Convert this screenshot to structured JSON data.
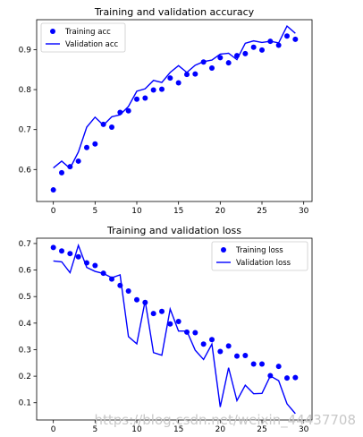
{
  "chart_data": [
    {
      "type": "line",
      "title": "Training and validation accuracy",
      "xlabel": "",
      "ylabel": "",
      "xlim": [
        -2,
        31
      ],
      "ylim": [
        0.52,
        0.975
      ],
      "xticks": [
        0,
        5,
        10,
        15,
        20,
        25,
        30
      ],
      "yticks": [
        0.6,
        0.7,
        0.8,
        0.9
      ],
      "legend_position": "top-left",
      "grid": false,
      "x": [
        0,
        1,
        2,
        3,
        4,
        5,
        6,
        7,
        8,
        9,
        10,
        11,
        12,
        13,
        14,
        15,
        16,
        17,
        18,
        19,
        20,
        21,
        22,
        23,
        24,
        25,
        26,
        27,
        28,
        29
      ],
      "series": [
        {
          "name": "Training acc",
          "style": "points",
          "color": "#0000ff",
          "values": [
            0.549,
            0.592,
            0.607,
            0.621,
            0.655,
            0.664,
            0.713,
            0.706,
            0.743,
            0.747,
            0.776,
            0.779,
            0.799,
            0.801,
            0.829,
            0.817,
            0.838,
            0.839,
            0.869,
            0.854,
            0.88,
            0.867,
            0.885,
            0.89,
            0.906,
            0.899,
            0.921,
            0.911,
            0.934,
            0.926
          ]
        },
        {
          "name": "Validation acc",
          "style": "line",
          "color": "#0000ff",
          "values": [
            0.604,
            0.621,
            0.603,
            0.644,
            0.706,
            0.731,
            0.711,
            0.732,
            0.737,
            0.758,
            0.796,
            0.802,
            0.823,
            0.818,
            0.843,
            0.86,
            0.843,
            0.861,
            0.87,
            0.874,
            0.889,
            0.891,
            0.875,
            0.916,
            0.922,
            0.918,
            0.921,
            0.917,
            0.959,
            0.941
          ]
        }
      ]
    },
    {
      "type": "line",
      "title": "Training and validation loss",
      "xlabel": "",
      "ylabel": "",
      "xlim": [
        -2,
        31
      ],
      "ylim": [
        0.035,
        0.72
      ],
      "xticks": [
        0,
        5,
        10,
        15,
        20,
        25,
        30
      ],
      "yticks": [
        0.1,
        0.2,
        0.3,
        0.4,
        0.5,
        0.6,
        0.7
      ],
      "legend_position": "top-right",
      "grid": false,
      "x": [
        0,
        1,
        2,
        3,
        4,
        5,
        6,
        7,
        8,
        9,
        10,
        11,
        12,
        13,
        14,
        15,
        16,
        17,
        18,
        19,
        20,
        21,
        22,
        23,
        24,
        25,
        26,
        27,
        28,
        29
      ],
      "series": [
        {
          "name": "Training loss",
          "style": "points",
          "color": "#0000ff",
          "values": [
            0.685,
            0.672,
            0.662,
            0.65,
            0.627,
            0.617,
            0.588,
            0.566,
            0.542,
            0.521,
            0.488,
            0.478,
            0.436,
            0.444,
            0.397,
            0.406,
            0.366,
            0.364,
            0.321,
            0.338,
            0.293,
            0.314,
            0.276,
            0.278,
            0.246,
            0.246,
            0.202,
            0.237,
            0.193,
            0.195
          ]
        },
        {
          "name": "Validation loss",
          "style": "line",
          "color": "#0000ff",
          "values": [
            0.634,
            0.631,
            0.59,
            0.693,
            0.61,
            0.595,
            0.587,
            0.571,
            0.582,
            0.349,
            0.322,
            0.484,
            0.289,
            0.279,
            0.453,
            0.37,
            0.37,
            0.298,
            0.263,
            0.321,
            0.084,
            0.232,
            0.108,
            0.166,
            0.134,
            0.135,
            0.201,
            0.183,
            0.096,
            0.059
          ]
        }
      ]
    }
  ],
  "watermark": "https://blog.csdn.net/weixin_44437708"
}
